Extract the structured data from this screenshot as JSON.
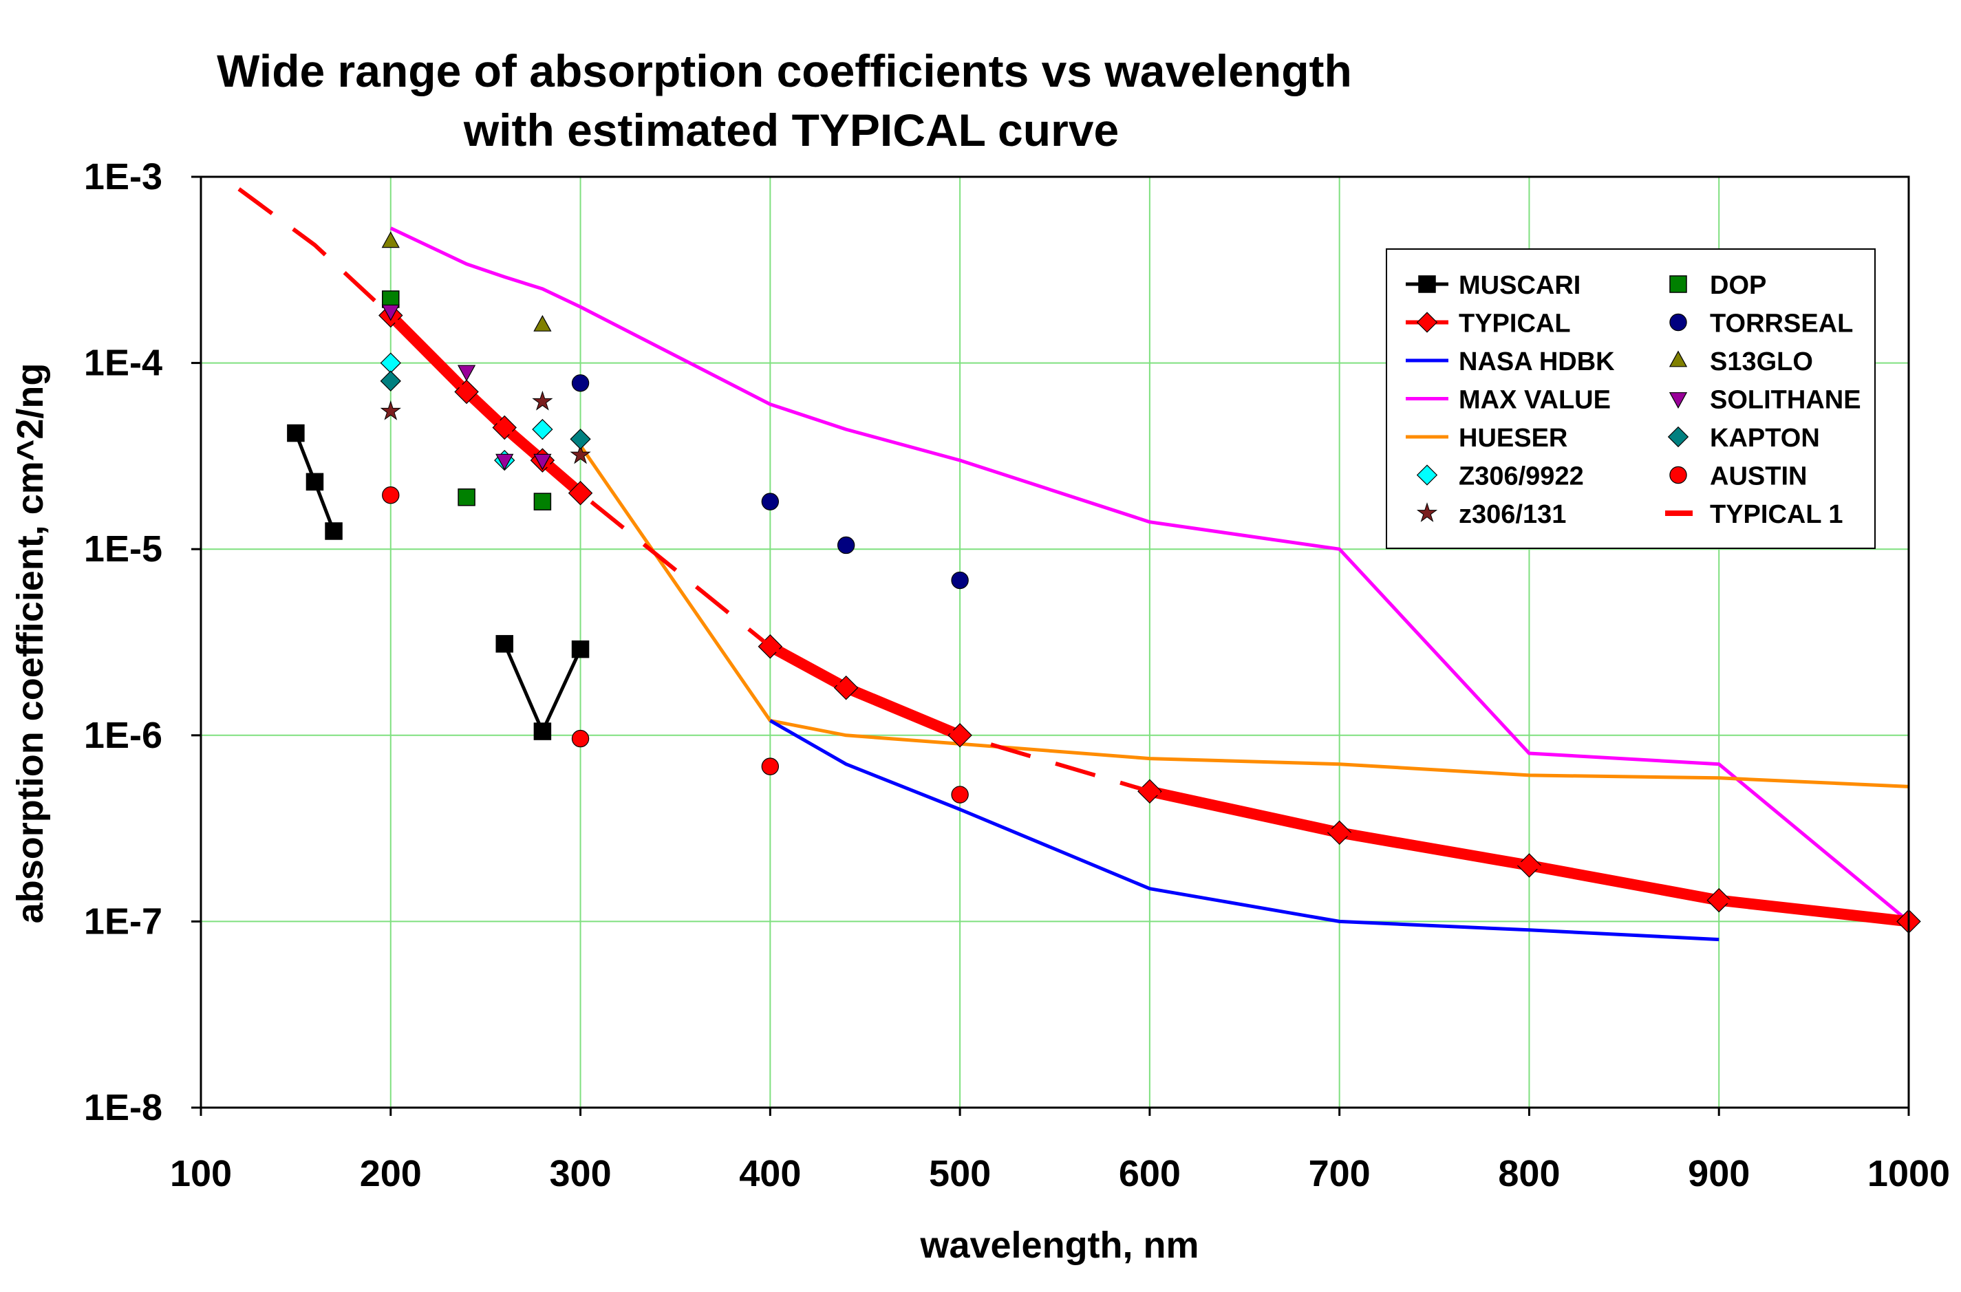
{
  "chart_data": {
    "type": "line",
    "title_line1": "Wide range of absorption coefficients vs wavelength",
    "title_line2": "with estimated TYPICAL curve",
    "xlabel": "wavelength,  nm",
    "ylabel": "absorption coefficient,   cm^2/ng",
    "xlim": [
      100,
      1000
    ],
    "ylim": [
      1e-08,
      0.001
    ],
    "yscale": "log",
    "grid": true,
    "legend_position": "top-right",
    "x_ticks": [
      100,
      200,
      300,
      400,
      500,
      600,
      700,
      800,
      900,
      1000
    ],
    "x_tick_labels": [
      "100",
      "200",
      "300",
      "400",
      "500",
      "600",
      "700",
      "800",
      "900",
      "1000"
    ],
    "y_ticks": [
      0.001,
      0.0001,
      1e-05,
      1e-06,
      1e-07,
      1e-08
    ],
    "y_tick_labels": [
      "1E-3",
      "1E-4",
      "1E-5",
      "1E-6",
      "1E-7",
      "1E-8"
    ],
    "series": [
      {
        "name": "MUSCARI",
        "style": "line-marker",
        "color": "#000000",
        "marker": "square",
        "markerColor": "#000000",
        "segments": [
          [
            [
              150,
              4.2e-05
            ],
            [
              160,
              2.3e-05
            ],
            [
              170,
              1.25e-05
            ]
          ],
          [
            [
              260,
              3.1e-06
            ],
            [
              280,
              1.05e-06
            ],
            [
              300,
              2.9e-06
            ]
          ]
        ]
      },
      {
        "name": "TYPICAL",
        "style": "line-marker",
        "color": "#ff0000",
        "marker": "diamond",
        "markerColor": "#ff0000",
        "segments": [
          [
            [
              200,
              0.00018
            ],
            [
              240,
              7e-05
            ],
            [
              260,
              4.5e-05
            ],
            [
              280,
              3e-05
            ],
            [
              300,
              2e-05
            ]
          ],
          [
            [
              400,
              3e-06
            ],
            [
              440,
              1.8e-06
            ],
            [
              500,
              1e-06
            ]
          ],
          [
            [
              600,
              5e-07
            ],
            [
              700,
              3e-07
            ],
            [
              800,
              2e-07
            ],
            [
              900,
              1.3e-07
            ],
            [
              1000,
              1e-07
            ]
          ]
        ]
      },
      {
        "name": "NASA HDBK",
        "style": "line",
        "color": "#0000ff",
        "segments": [
          [
            [
              400,
              1.2e-06
            ],
            [
              440,
              7e-07
            ],
            [
              500,
              4e-07
            ],
            [
              600,
              1.5e-07
            ],
            [
              700,
              1e-07
            ],
            [
              800,
              9e-08
            ],
            [
              900,
              8e-08
            ]
          ]
        ]
      },
      {
        "name": "MAX VALUE",
        "style": "line",
        "color": "#ff00ff",
        "segments": [
          [
            [
              200,
              0.00053
            ],
            [
              240,
              0.00034
            ],
            [
              260,
              0.00029
            ],
            [
              280,
              0.00025
            ],
            [
              300,
              0.0002
            ],
            [
              400,
              6e-05
            ],
            [
              440,
              4.4e-05
            ],
            [
              500,
              3e-05
            ],
            [
              600,
              1.4e-05
            ],
            [
              700,
              1e-05
            ],
            [
              800,
              8e-07
            ],
            [
              900,
              7e-07
            ],
            [
              1000,
              1e-07
            ]
          ]
        ]
      },
      {
        "name": "HUESER",
        "style": "line",
        "color": "#ff8c00",
        "segments": [
          [
            [
              300,
              3.6e-05
            ],
            [
              400,
              1.2e-06
            ],
            [
              440,
              1e-06
            ],
            [
              500,
              9e-07
            ],
            [
              600,
              7.5e-07
            ],
            [
              700,
              7e-07
            ],
            [
              800,
              6.1e-07
            ],
            [
              900,
              5.9e-07
            ],
            [
              1000,
              5.3e-07
            ]
          ]
        ]
      },
      {
        "name": "Z306/9922",
        "style": "marker",
        "marker": "diamond",
        "markerColor": "#00ffff",
        "points": [
          [
            200,
            0.0001
          ],
          [
            260,
            3e-05
          ],
          [
            280,
            4.4e-05
          ]
        ]
      },
      {
        "name": "z306/131",
        "style": "marker",
        "marker": "star",
        "markerColor": "#7a1e1e",
        "points": [
          [
            200,
            5.5e-05
          ],
          [
            280,
            6.2e-05
          ],
          [
            300,
            3.2e-05
          ]
        ]
      },
      {
        "name": "DOP",
        "style": "marker",
        "marker": "square",
        "markerColor": "#008000",
        "points": [
          [
            200,
            0.00022
          ],
          [
            240,
            1.9e-05
          ],
          [
            280,
            1.8e-05
          ]
        ]
      },
      {
        "name": "TORRSEAL",
        "style": "marker",
        "marker": "circle",
        "markerColor": "#000080",
        "points": [
          [
            300,
            7.8e-05
          ],
          [
            400,
            1.8e-05
          ],
          [
            440,
            1.05e-05
          ],
          [
            500,
            6.8e-06
          ]
        ]
      },
      {
        "name": "S13GLO",
        "style": "marker",
        "marker": "triangle-up",
        "markerColor": "#808000",
        "points": [
          [
            200,
            0.00045
          ],
          [
            280,
            0.00016
          ]
        ]
      },
      {
        "name": "SOLITHANE",
        "style": "marker",
        "marker": "triangle-down",
        "markerColor": "#990099",
        "points": [
          [
            200,
            0.00019
          ],
          [
            240,
            9e-05
          ],
          [
            260,
            3e-05
          ],
          [
            280,
            3e-05
          ]
        ]
      },
      {
        "name": "KAPTON",
        "style": "marker",
        "marker": "diamond",
        "markerColor": "#008080",
        "points": [
          [
            200,
            8e-05
          ],
          [
            300,
            3.9e-05
          ]
        ]
      },
      {
        "name": "AUSTIN",
        "style": "marker",
        "marker": "circle",
        "markerColor": "#ff0000",
        "points": [
          [
            200,
            1.95e-05
          ],
          [
            300,
            9.6e-07
          ],
          [
            400,
            6.8e-07
          ],
          [
            500,
            4.8e-07
          ]
        ]
      },
      {
        "name": "TYPICAL 1",
        "style": "dashed-line",
        "color": "#ff0000",
        "segments": [
          [
            [
              120,
              0.00086
            ],
            [
              160,
              0.00043
            ],
            [
              200,
              0.00018
            ],
            [
              240,
              7e-05
            ],
            [
              260,
              4.5e-05
            ],
            [
              280,
              3e-05
            ],
            [
              300,
              2e-05
            ],
            [
              400,
              3e-06
            ],
            [
              440,
              1.8e-06
            ],
            [
              500,
              1e-06
            ],
            [
              600,
              5e-07
            ],
            [
              700,
              3e-07
            ],
            [
              800,
              2e-07
            ],
            [
              900,
              1.3e-07
            ],
            [
              1000,
              1e-07
            ]
          ]
        ]
      }
    ],
    "legend_col1": [
      "MUSCARI",
      "TYPICAL",
      "NASA HDBK",
      "MAX VALUE",
      "HUESER",
      "Z306/9922",
      "z306/131"
    ],
    "legend_col2": [
      "DOP",
      "TORRSEAL",
      "S13GLO",
      "SOLITHANE",
      "KAPTON",
      "AUSTIN",
      "TYPICAL 1"
    ]
  }
}
